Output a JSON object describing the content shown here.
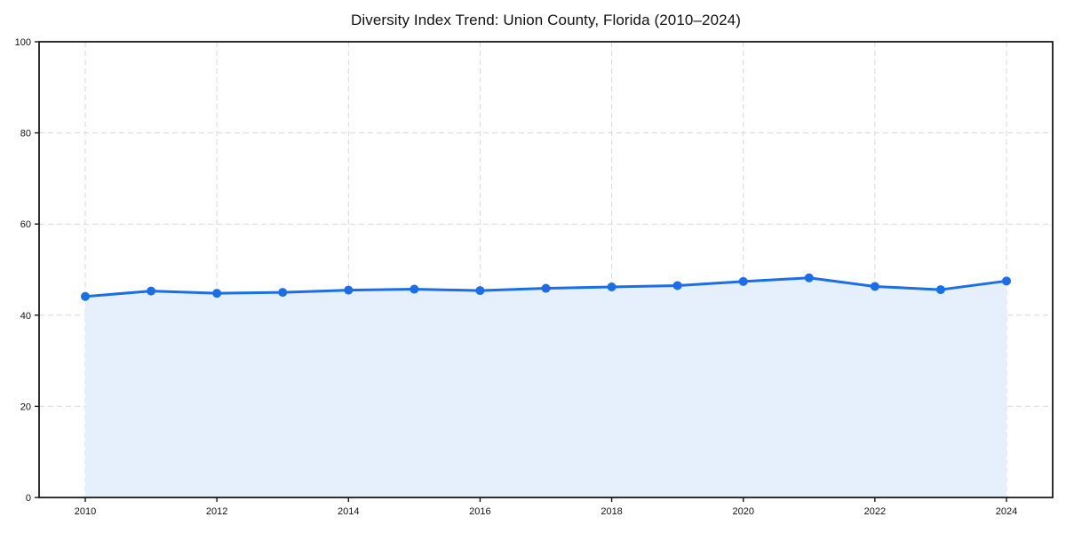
{
  "chart_data": {
    "type": "area",
    "title": "Diversity Index Trend: Union County, Florida (2010–2024)",
    "series_name": "Diversity Index",
    "x": [
      2010,
      2011,
      2012,
      2013,
      2014,
      2015,
      2016,
      2017,
      2018,
      2019,
      2020,
      2021,
      2022,
      2023,
      2024
    ],
    "values": [
      44.1,
      45.3,
      44.8,
      45.0,
      45.5,
      45.7,
      45.4,
      45.9,
      46.2,
      46.5,
      47.4,
      48.2,
      46.3,
      45.6,
      47.5
    ],
    "xlabel": "",
    "ylabel": "",
    "xlim": [
      2010,
      2024
    ],
    "ylim": [
      0,
      100
    ],
    "yticks": [
      0,
      20,
      40,
      60,
      80,
      100
    ],
    "xticks": [
      2010,
      2012,
      2014,
      2016,
      2018,
      2020,
      2022,
      2024
    ],
    "grid": true,
    "grid_style": "dashed",
    "legend": false,
    "marker": "circle"
  },
  "style": {
    "line_color": "#1a6fe8",
    "marker_color": "#1a6fe8",
    "fill_color": "#e6effc",
    "grid_color": "#d9d9d9",
    "spine_color": "#1a1a1a",
    "tick_color": "#1a1a1a",
    "text_color": "#111111",
    "background_color": "#ffffff"
  }
}
